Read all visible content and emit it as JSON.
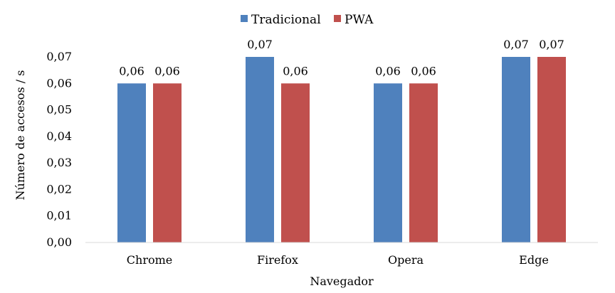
{
  "chart_data": {
    "type": "bar",
    "categories": [
      "Chrome",
      "Firefox",
      "Opera",
      "Edge"
    ],
    "series": [
      {
        "name": "Tradicional",
        "values": [
          0.06,
          0.07,
          0.06,
          0.07
        ],
        "labels": [
          "0,06",
          "0,07",
          "0,06",
          "0,07"
        ],
        "color": "#4f81bd"
      },
      {
        "name": "PWA",
        "values": [
          0.06,
          0.06,
          0.06,
          0.07
        ],
        "labels": [
          "0,06",
          "0,06",
          "0,06",
          "0,07"
        ],
        "color": "#c0504d"
      }
    ],
    "xlabel": "Navegador",
    "ylabel": "Número de accesos / s",
    "ylim": [
      0,
      0.07
    ],
    "yticks": [
      0,
      0.01,
      0.02,
      0.03,
      0.04,
      0.05,
      0.06,
      0.07
    ],
    "ytick_labels": [
      "0,00",
      "0,01",
      "0,02",
      "0,03",
      "0,04",
      "0,05",
      "0,06",
      "0,07"
    ],
    "legend_position": "top",
    "grid": false,
    "axis_color": "#d9d9d9"
  }
}
